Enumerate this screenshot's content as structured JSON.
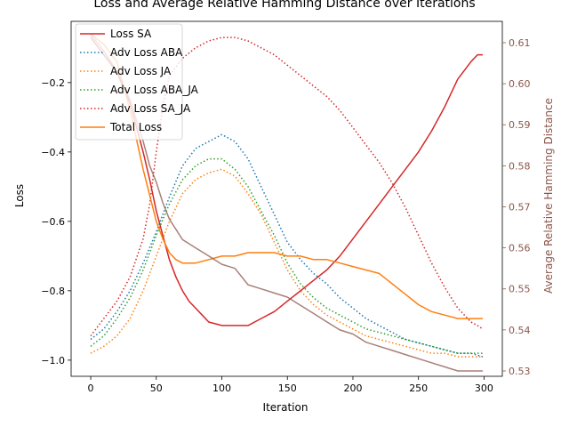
{
  "chart_data": {
    "type": "line",
    "title": "Loss and Average Relative Hamming Distance over Iterations",
    "xlabel": "Iteration",
    "ylabel": "Loss",
    "y2label": "Average Relative Hamming Distance",
    "xlim": [
      -14.95,
      313.95
    ],
    "ylim": [
      -1.0465,
      -0.0235
    ],
    "y2lim": [
      0.5287,
      0.6152
    ],
    "xticks": [
      0,
      50,
      100,
      150,
      200,
      250,
      300
    ],
    "yticks": [
      -1.0,
      -0.8,
      -0.6,
      -0.4,
      -0.2
    ],
    "y2ticks": [
      0.53,
      0.54,
      0.55,
      0.56,
      0.57,
      0.58,
      0.59,
      0.6,
      0.61
    ],
    "legend_position": "upper-left",
    "grid": false,
    "series": [
      {
        "name": "Loss SA",
        "axis": "left",
        "style": "solid",
        "color": "#d62728",
        "x": [
          0,
          10,
          20,
          30,
          35,
          40,
          45,
          50,
          55,
          60,
          65,
          70,
          75,
          80,
          85,
          90,
          100,
          110,
          120,
          130,
          140,
          150,
          160,
          170,
          180,
          190,
          200,
          210,
          220,
          230,
          240,
          250,
          260,
          270,
          280,
          290,
          295,
          299
        ],
        "y": [
          -0.07,
          -0.12,
          -0.17,
          -0.26,
          -0.33,
          -0.4,
          -0.48,
          -0.57,
          -0.64,
          -0.71,
          -0.76,
          -0.8,
          -0.83,
          -0.85,
          -0.87,
          -0.89,
          -0.9,
          -0.9,
          -0.9,
          -0.88,
          -0.86,
          -0.83,
          -0.8,
          -0.77,
          -0.74,
          -0.7,
          -0.65,
          -0.6,
          -0.55,
          -0.5,
          -0.45,
          -0.4,
          -0.34,
          -0.27,
          -0.19,
          -0.14,
          -0.12,
          -0.12
        ]
      },
      {
        "name": "Adv Loss ABA",
        "axis": "left",
        "style": "dotted",
        "color": "#1f77b4",
        "x": [
          0,
          10,
          20,
          30,
          40,
          50,
          60,
          70,
          80,
          90,
          100,
          110,
          120,
          130,
          140,
          150,
          160,
          170,
          180,
          190,
          200,
          210,
          220,
          230,
          240,
          250,
          260,
          270,
          280,
          290,
          299
        ],
        "y": [
          -0.94,
          -0.91,
          -0.86,
          -0.8,
          -0.72,
          -0.63,
          -0.53,
          -0.44,
          -0.39,
          -0.37,
          -0.35,
          -0.37,
          -0.42,
          -0.5,
          -0.58,
          -0.66,
          -0.71,
          -0.75,
          -0.78,
          -0.82,
          -0.85,
          -0.88,
          -0.9,
          -0.92,
          -0.94,
          -0.95,
          -0.96,
          -0.97,
          -0.98,
          -0.98,
          -0.99
        ]
      },
      {
        "name": "Adv Loss JA",
        "axis": "left",
        "style": "dotted",
        "color": "#ff7f0e",
        "x": [
          0,
          10,
          20,
          30,
          40,
          50,
          60,
          70,
          80,
          90,
          100,
          110,
          120,
          130,
          140,
          150,
          160,
          170,
          180,
          190,
          200,
          210,
          220,
          230,
          240,
          250,
          260,
          270,
          280,
          290,
          299
        ],
        "y": [
          -0.98,
          -0.96,
          -0.93,
          -0.88,
          -0.8,
          -0.7,
          -0.6,
          -0.52,
          -0.48,
          -0.46,
          -0.45,
          -0.47,
          -0.52,
          -0.58,
          -0.66,
          -0.74,
          -0.8,
          -0.84,
          -0.87,
          -0.89,
          -0.91,
          -0.93,
          -0.94,
          -0.95,
          -0.96,
          -0.97,
          -0.98,
          -0.98,
          -0.99,
          -0.99,
          -0.99
        ]
      },
      {
        "name": "Adv Loss ABA_JA",
        "axis": "left",
        "style": "dotted",
        "color": "#2ca02c",
        "x": [
          0,
          10,
          20,
          30,
          40,
          50,
          60,
          70,
          80,
          90,
          100,
          110,
          120,
          130,
          140,
          150,
          160,
          170,
          180,
          190,
          200,
          210,
          220,
          230,
          240,
          250,
          260,
          270,
          280,
          290,
          299
        ],
        "y": [
          -0.96,
          -0.93,
          -0.88,
          -0.82,
          -0.74,
          -0.64,
          -0.55,
          -0.48,
          -0.44,
          -0.42,
          -0.42,
          -0.45,
          -0.5,
          -0.57,
          -0.64,
          -0.72,
          -0.78,
          -0.82,
          -0.85,
          -0.87,
          -0.89,
          -0.91,
          -0.92,
          -0.93,
          -0.94,
          -0.95,
          -0.96,
          -0.97,
          -0.98,
          -0.98,
          -0.98
        ]
      },
      {
        "name": "Adv Loss SA_JA",
        "axis": "left",
        "style": "dotted",
        "color": "#d62728",
        "x": [
          0,
          10,
          20,
          30,
          40,
          45,
          50,
          55,
          60,
          70,
          80,
          90,
          100,
          110,
          120,
          130,
          140,
          150,
          160,
          170,
          180,
          190,
          200,
          210,
          220,
          230,
          240,
          250,
          260,
          270,
          280,
          290,
          295,
          299
        ],
        "y": [
          -0.93,
          -0.88,
          -0.83,
          -0.76,
          -0.65,
          -0.55,
          -0.4,
          -0.27,
          -0.18,
          -0.13,
          -0.1,
          -0.08,
          -0.07,
          -0.07,
          -0.08,
          -0.1,
          -0.12,
          -0.15,
          -0.18,
          -0.21,
          -0.24,
          -0.28,
          -0.33,
          -0.38,
          -0.43,
          -0.49,
          -0.56,
          -0.64,
          -0.72,
          -0.79,
          -0.85,
          -0.89,
          -0.9,
          -0.91
        ]
      },
      {
        "name": "Total Loss",
        "axis": "left",
        "style": "solid",
        "color": "#ff7f0e",
        "x": [
          0,
          10,
          20,
          30,
          40,
          50,
          55,
          60,
          65,
          70,
          80,
          90,
          100,
          110,
          120,
          130,
          140,
          150,
          160,
          170,
          180,
          190,
          200,
          210,
          220,
          230,
          240,
          250,
          260,
          270,
          280,
          290,
          299
        ],
        "y": [
          -0.06,
          -0.09,
          -0.14,
          -0.28,
          -0.45,
          -0.6,
          -0.65,
          -0.69,
          -0.71,
          -0.72,
          -0.72,
          -0.71,
          -0.7,
          -0.7,
          -0.69,
          -0.69,
          -0.69,
          -0.7,
          -0.7,
          -0.71,
          -0.71,
          -0.72,
          -0.73,
          -0.74,
          -0.75,
          -0.78,
          -0.81,
          -0.84,
          -0.86,
          -0.87,
          -0.88,
          -0.88,
          -0.88
        ]
      },
      {
        "name": "",
        "axis": "right",
        "style": "solid",
        "color": "#8c564b",
        "x": [
          0,
          10,
          20,
          30,
          40,
          45,
          50,
          55,
          60,
          70,
          80,
          90,
          100,
          110,
          120,
          130,
          140,
          150,
          160,
          170,
          180,
          190,
          200,
          210,
          220,
          230,
          240,
          250,
          260,
          270,
          280,
          290,
          299
        ],
        "y": [
          0.612,
          0.608,
          0.603,
          0.596,
          0.586,
          0.58,
          0.576,
          0.571,
          0.567,
          0.562,
          0.56,
          0.558,
          0.556,
          0.555,
          0.551,
          0.55,
          0.549,
          0.548,
          0.546,
          0.544,
          0.542,
          0.54,
          0.539,
          0.537,
          0.536,
          0.535,
          0.534,
          0.533,
          0.532,
          0.531,
          0.53,
          0.53,
          0.53
        ]
      }
    ]
  }
}
